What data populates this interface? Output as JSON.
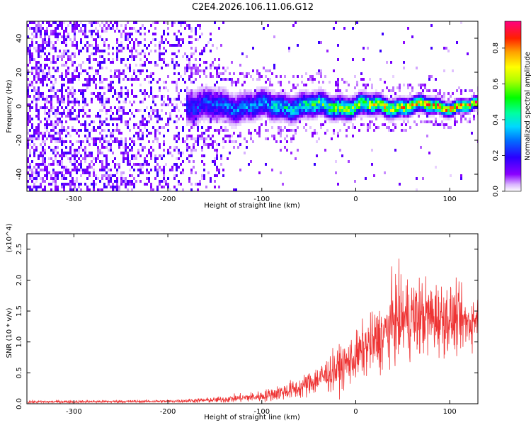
{
  "title": "C2E4.2026.106.11.06.G12",
  "chart_data": [
    {
      "type": "heatmap",
      "name": "spectrogram",
      "xlabel": "Height of straight line (km)",
      "ylabel": "Frequency (Hz)",
      "xlim": [
        -350,
        130
      ],
      "ylim": [
        -50,
        50
      ],
      "xticks": [
        -300,
        -200,
        -100,
        0,
        100
      ],
      "yticks": [
        -40,
        -20,
        0,
        20,
        40
      ],
      "colorbar": {
        "label": "Normalized spectral amplitude",
        "range": [
          0,
          0.95
        ],
        "ticks": [
          "0.0",
          "0.2",
          "0.4",
          "0.6",
          "0.8"
        ],
        "tick_values": [
          0.0,
          0.2,
          0.4,
          0.6,
          0.8
        ]
      },
      "trend": {
        "noise_region": [
          -350,
          -140
        ],
        "band_start": -180,
        "band_center_freq": 0,
        "band_halfwidth_hz": [
          8,
          3
        ],
        "intensity_trend": [
          {
            "x": -180,
            "amp": 0.25
          },
          {
            "x": -100,
            "amp": 0.35
          },
          {
            "x": -20,
            "amp": 0.6
          },
          {
            "x": 40,
            "amp": 0.75
          },
          {
            "x": 130,
            "amp": 0.9
          }
        ]
      }
    },
    {
      "type": "line",
      "name": "snr",
      "xlabel": "Height of straight line (km)",
      "ylabel": "SNR (10 * v/v)",
      "multiplier": "(x10^4)",
      "xlim": [
        -350,
        130
      ],
      "ylim": [
        0,
        2.75
      ],
      "xticks": [
        -300,
        -200,
        -100,
        0,
        100
      ],
      "yticks": [
        "0.0",
        "0.5",
        "1.0",
        "1.5",
        "2.0",
        "2.5"
      ],
      "ytick_values": [
        0.0,
        0.5,
        1.0,
        1.5,
        2.0,
        2.5
      ],
      "envelope": {
        "x": [
          -350,
          -200,
          -150,
          -100,
          -60,
          -40,
          -20,
          0,
          10,
          20,
          30,
          40,
          60,
          80,
          100,
          120,
          130
        ],
        "mean": [
          0.03,
          0.04,
          0.06,
          0.12,
          0.25,
          0.4,
          0.55,
          0.75,
          0.9,
          1.0,
          1.1,
          1.35,
          1.4,
          1.4,
          1.38,
          1.3,
          1.4
        ],
        "spread": [
          0.02,
          0.02,
          0.04,
          0.08,
          0.15,
          0.22,
          0.3,
          0.35,
          0.4,
          0.45,
          0.5,
          0.6,
          0.6,
          0.55,
          0.5,
          0.4,
          0.3
        ]
      }
    }
  ]
}
